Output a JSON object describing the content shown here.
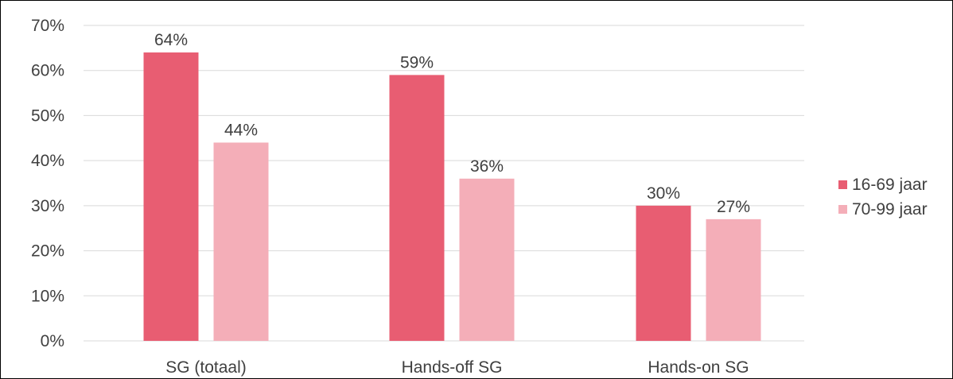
{
  "chart_data": {
    "type": "bar",
    "categories": [
      "SG (totaal)",
      "Hands-off SG",
      "Hands-on SG"
    ],
    "series": [
      {
        "name": "16-69 jaar",
        "values": [
          64,
          59,
          30
        ],
        "labels": [
          "64%",
          "59%",
          "30%"
        ],
        "color": "#e85d72"
      },
      {
        "name": "70-99 jaar",
        "values": [
          44,
          36,
          27
        ],
        "labels": [
          "44%",
          "36%",
          "27%"
        ],
        "color": "#f4aeb8"
      }
    ],
    "y_ticks": [
      "0%",
      "10%",
      "20%",
      "30%",
      "40%",
      "50%",
      "60%",
      "70%"
    ],
    "ylim": [
      0,
      70
    ],
    "grid": true,
    "gridline_color": "#d9d9d9",
    "legend_position": "right"
  }
}
